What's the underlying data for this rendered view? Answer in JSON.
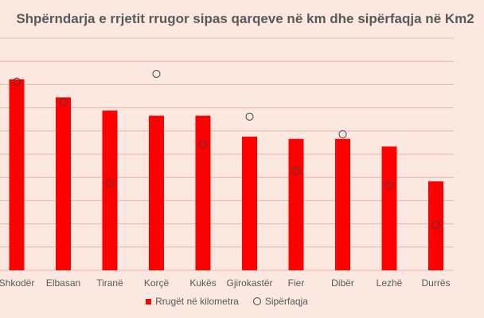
{
  "chart_data": {
    "type": "bar",
    "title": "Shpërndarja e rrjetit rrugor sipas qarqeve në km dhe sipërfaqja në Km2",
    "categories": [
      "Shkodër",
      "Elbasan",
      "Tiranë",
      "Korçë",
      "Kukës",
      "Gjirokastër",
      "Fier",
      "Dibër",
      "Lezhë",
      "Durrës"
    ],
    "series": [
      {
        "name": "Rrugët në kilometra",
        "type": "bar",
        "values": [
          823,
          745,
          688,
          666,
          666,
          576,
          566,
          566,
          533,
          383
        ]
      },
      {
        "name": "Sipërfaqja",
        "type": "scatter",
        "values": [
          813,
          727,
          375,
          846,
          544,
          662,
          428,
          586,
          366,
          196
        ]
      }
    ],
    "ylim": [
      0,
      1000
    ],
    "grid": true,
    "legend_position": "bottom",
    "colors": {
      "bar": "#ff0000",
      "marker_stroke": "#404040",
      "background": "#fbe8e1",
      "grid": "#e8b3a9"
    }
  }
}
